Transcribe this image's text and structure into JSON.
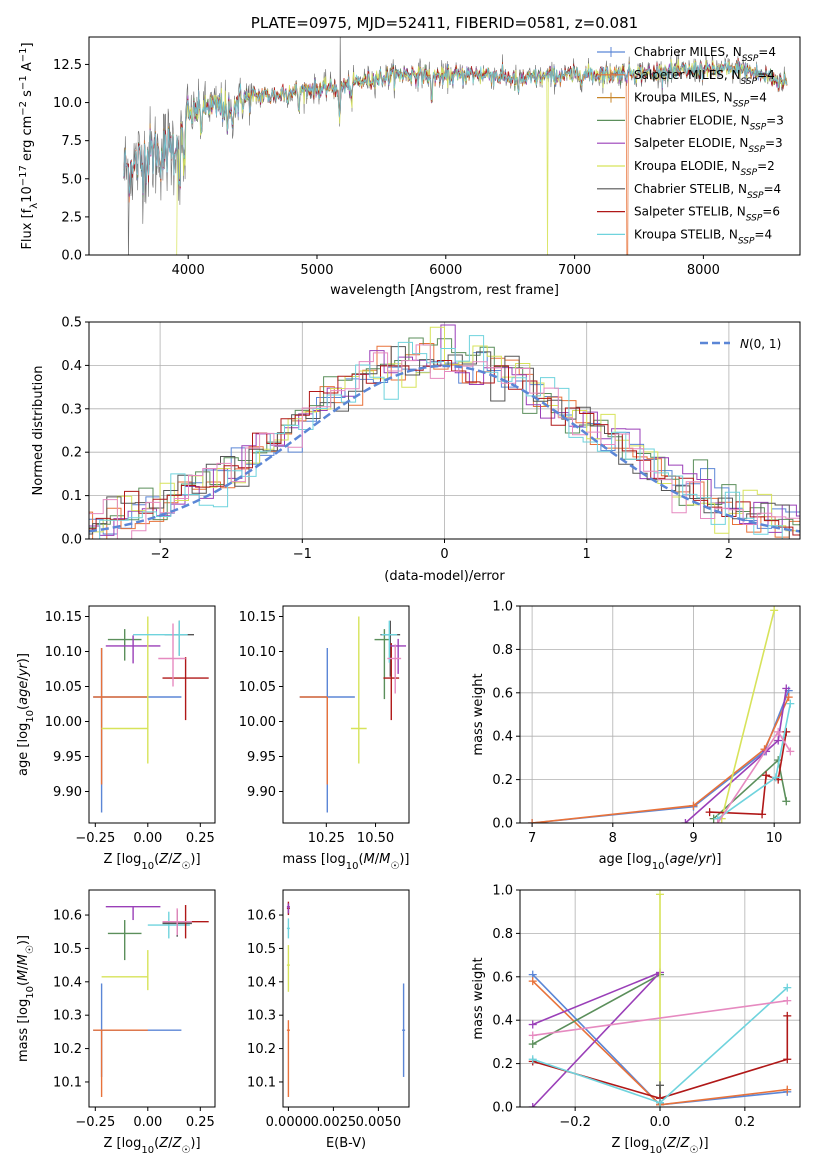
{
  "figure": {
    "title": "PLATE=0975, MJD=52411, FIBERID=0581, z=0.081"
  },
  "colors": {
    "Chabrier MILES": "#5b86d6",
    "Salpeter MILES": "#e8723a",
    "Kroupa MILES": "#c8862a",
    "Chabrier ELODIE": "#5b8f5b",
    "Salpeter ELODIE": "#9a3fb8",
    "Kroupa ELODIE": "#d7e35a",
    "Chabrier STELIB": "#555555",
    "Salpeter STELIB": "#b01818",
    "Kroupa STELIB": "#6fd3dd",
    "pink": "#e68ac0",
    "gauss": "#5b86d6"
  },
  "chart_data": [
    {
      "id": "spectrum",
      "type": "line",
      "title": "PLATE=0975, MJD=52411, FIBERID=0581, z=0.081",
      "xlabel": "wavelength [Angstrom, rest frame]",
      "ylabel": "Flux [f_λ10^-17 erg cm^-2 s^-1 A^-1]",
      "xlim": [
        3230,
        8750
      ],
      "ylim": [
        0,
        14.3
      ],
      "xticks": [
        4000,
        5000,
        6000,
        7000,
        8000
      ],
      "yticks": [
        0.0,
        2.5,
        5.0,
        7.5,
        10.0,
        12.5
      ],
      "legend_position": "right",
      "legend": [
        {
          "name": "Chabrier MILES",
          "n_ssp": 4
        },
        {
          "name": "Salpeter MILES",
          "n_ssp": 4
        },
        {
          "name": "Kroupa MILES",
          "n_ssp": 4
        },
        {
          "name": "Chabrier ELODIE",
          "n_ssp": 3
        },
        {
          "name": "Salpeter ELODIE",
          "n_ssp": 3
        },
        {
          "name": "Kroupa ELODIE",
          "n_ssp": 2
        },
        {
          "name": "Chabrier STELIB",
          "n_ssp": 4
        },
        {
          "name": "Salpeter STELIB",
          "n_ssp": 6
        },
        {
          "name": "Kroupa STELIB",
          "n_ssp": 4
        }
      ],
      "continuum_points": [
        [
          3500,
          5.5
        ],
        [
          3600,
          6.0
        ],
        [
          3700,
          6.5
        ],
        [
          3800,
          6.8
        ],
        [
          3900,
          7.2
        ],
        [
          3950,
          7.8
        ],
        [
          4000,
          9.0
        ],
        [
          4100,
          9.7
        ],
        [
          4300,
          9.8
        ],
        [
          4500,
          10.4
        ],
        [
          4700,
          10.5
        ],
        [
          4860,
          10.8
        ],
        [
          5000,
          10.9
        ],
        [
          5200,
          11.1
        ],
        [
          5400,
          11.5
        ],
        [
          5600,
          11.8
        ],
        [
          5800,
          11.9
        ],
        [
          6000,
          11.7
        ],
        [
          6300,
          11.9
        ],
        [
          6563,
          11.5
        ],
        [
          6800,
          11.7
        ],
        [
          7000,
          11.8
        ],
        [
          7300,
          11.9
        ],
        [
          7600,
          12.0
        ],
        [
          7900,
          12.1
        ],
        [
          8300,
          12.2
        ],
        [
          8600,
          11.4
        ]
      ],
      "absorption_lines": [
        [
          3934,
          3.0
        ],
        [
          3968,
          2.8
        ],
        [
          4101,
          1.5
        ],
        [
          4304,
          2.0
        ],
        [
          4340,
          1.5
        ],
        [
          4861,
          1.3
        ],
        [
          5175,
          2.5
        ],
        [
          5270,
          1.2
        ],
        [
          5890,
          2.0
        ],
        [
          6563,
          0.6
        ],
        [
          7600,
          0.5
        ]
      ],
      "dropouts": [
        {
          "series": "Kroupa ELODIE",
          "x": 3910
        },
        {
          "series": "Kroupa ELODIE",
          "x": 6790
        },
        {
          "series": "Salpeter MILES",
          "x": 7410
        }
      ]
    },
    {
      "id": "residuals",
      "type": "histogram",
      "xlabel": "(data-model)/error",
      "ylabel": "Normed distribution",
      "xlim": [
        -2.5,
        2.5
      ],
      "ylim": [
        0,
        0.5
      ],
      "xticks": [
        -2,
        -1,
        0,
        1,
        2
      ],
      "yticks": [
        0.0,
        0.1,
        0.2,
        0.3,
        0.4,
        0.5
      ],
      "grid": true,
      "bin_width": 0.1,
      "reference": {
        "label": "N(0,1)",
        "mean": 0,
        "sigma": 1,
        "style": "dashed"
      }
    },
    {
      "id": "age_vs_Z",
      "type": "errorbar",
      "xlabel": "Z [log10(Z/Z☉)]",
      "ylabel": "age [log10(age/yr)]",
      "xlim": [
        -0.28,
        0.32
      ],
      "ylim": [
        9.855,
        10.165
      ],
      "xticks": [
        -0.25,
        0.0,
        0.25
      ],
      "yticks": [
        9.9,
        9.95,
        10.0,
        10.05,
        10.1,
        10.15
      ],
      "points": [
        {
          "series": "Chabrier MILES",
          "x": -0.22,
          "xerr": [
            0.04,
            0.38
          ],
          "y": 10.035,
          "yerr": [
            0.165,
            0.07
          ]
        },
        {
          "series": "Salpeter MILES",
          "x": -0.22,
          "xerr": [
            0.04,
            0.22
          ],
          "y": 10.035,
          "yerr": [
            0.125,
            0.07
          ]
        },
        {
          "series": "Chabrier ELODIE",
          "x": -0.11,
          "xerr": [
            0.08,
            0.08
          ],
          "y": 10.117,
          "yerr": [
            0.03,
            0.015
          ]
        },
        {
          "series": "Salpeter ELODIE",
          "x": -0.07,
          "xerr": [
            0.13,
            0.13
          ],
          "y": 10.108,
          "yerr": [
            0.025,
            0.015
          ]
        },
        {
          "series": "Kroupa ELODIE",
          "x": 0.0,
          "xerr": [
            0.22,
            0.0
          ],
          "y": 9.99,
          "yerr": [
            0.05,
            0.16
          ]
        },
        {
          "series": "Chabrier STELIB",
          "x": 0.15,
          "xerr": [
            0.07,
            0.07
          ],
          "y": 10.124,
          "yerr": [
            0.03,
            0.02
          ]
        },
        {
          "series": "Salpeter STELIB",
          "x": 0.18,
          "xerr": [
            0.11,
            0.11
          ],
          "y": 10.062,
          "yerr": [
            0.06,
            0.03
          ]
        },
        {
          "series": "Kroupa STELIB",
          "x": 0.15,
          "xerr": [
            0.22,
            0.04
          ],
          "y": 10.124,
          "yerr": [
            0.03,
            0.02
          ]
        },
        {
          "series": "pink",
          "x": 0.12,
          "xerr": [
            0.07,
            0.06
          ],
          "y": 10.09,
          "yerr": [
            0.04,
            0.05
          ]
        }
      ]
    },
    {
      "id": "age_vs_mass",
      "type": "errorbar",
      "xlabel": "mass [log10(M/M☉)]",
      "ylabel": "",
      "xlim": [
        10.03,
        10.67
      ],
      "ylim": [
        9.855,
        10.165
      ],
      "xticks": [
        10.25,
        10.5
      ],
      "yticks": [
        9.9,
        9.95,
        10.0,
        10.05,
        10.1,
        10.15
      ],
      "points": [
        {
          "series": "Chabrier MILES",
          "x": 10.255,
          "xerr": [
            0.14,
            0.14
          ],
          "y": 10.035,
          "yerr": [
            0.165,
            0.07
          ]
        },
        {
          "series": "Salpeter MILES",
          "x": 10.255,
          "xerr": [
            0.14,
            0.0
          ],
          "y": 10.035,
          "yerr": [
            0.125,
            0.0
          ]
        },
        {
          "series": "Kroupa ELODIE",
          "x": 10.415,
          "xerr": [
            0.04,
            0.04
          ],
          "y": 9.99,
          "yerr": [
            0.05,
            0.16
          ]
        },
        {
          "series": "Chabrier ELODIE",
          "x": 10.545,
          "xerr": [
            0.05,
            0.03
          ],
          "y": 10.117,
          "yerr": [
            0.085,
            0.015
          ]
        },
        {
          "series": "Chabrier STELIB",
          "x": 10.575,
          "xerr": [
            0.05,
            0.05
          ],
          "y": 10.124,
          "yerr": [
            0.06,
            0.02
          ]
        },
        {
          "series": "Salpeter STELIB",
          "x": 10.58,
          "xerr": [
            0.04,
            0.04
          ],
          "y": 10.062,
          "yerr": [
            0.06,
            0.05
          ]
        },
        {
          "series": "Salpeter ELODIE",
          "x": 10.615,
          "xerr": [
            0.04,
            0.04
          ],
          "y": 10.108,
          "yerr": [
            0.04,
            0.01
          ]
        },
        {
          "series": "Kroupa STELIB",
          "x": 10.57,
          "xerr": [
            0.04,
            0.04
          ],
          "y": 10.124,
          "yerr": [
            0.04,
            0.02
          ]
        },
        {
          "series": "pink",
          "x": 10.6,
          "xerr": [
            0.04,
            0.03
          ],
          "y": 10.09,
          "yerr": [
            0.05,
            0.02
          ]
        }
      ]
    },
    {
      "id": "weight_vs_age",
      "type": "line",
      "xlabel": "age [log10(age/yr)]",
      "ylabel": "mass weight",
      "xlim": [
        6.85,
        10.32
      ],
      "ylim": [
        0,
        1.0
      ],
      "xticks": [
        7,
        8,
        9,
        10
      ],
      "yticks": [
        0.0,
        0.2,
        0.4,
        0.6,
        0.8,
        1.0
      ],
      "grid": true,
      "series": [
        {
          "name": "Chabrier MILES",
          "x": [
            7.0,
            9.0,
            9.88,
            10.18
          ],
          "y": [
            0.0,
            0.075,
            0.33,
            0.61
          ]
        },
        {
          "name": "Salpeter MILES",
          "x": [
            7.0,
            9.0,
            9.88,
            10.18
          ],
          "y": [
            0.0,
            0.08,
            0.34,
            0.58
          ]
        },
        {
          "name": "Chabrier ELODIE",
          "x": [
            9.25,
            10.05,
            10.15
          ],
          "y": [
            0.02,
            0.29,
            0.1
          ]
        },
        {
          "name": "Salpeter ELODIE",
          "x": [
            8.9,
            9.9,
            10.05,
            10.15
          ],
          "y": [
            0.0,
            0.33,
            0.38,
            0.62
          ]
        },
        {
          "name": "Kroupa ELODIE",
          "x": [
            9.35,
            10.0
          ],
          "y": [
            0.02,
            0.98
          ]
        },
        {
          "name": "Salpeter STELIB",
          "x": [
            9.2,
            9.85,
            9.9,
            10.05,
            10.15
          ],
          "y": [
            0.05,
            0.04,
            0.22,
            0.2,
            0.42
          ]
        },
        {
          "name": "Kroupa STELIB",
          "x": [
            9.3,
            10.02,
            10.2
          ],
          "y": [
            0.02,
            0.21,
            0.55
          ]
        },
        {
          "name": "pink",
          "x": [
            9.3,
            10.05,
            10.2
          ],
          "y": [
            0.0,
            0.42,
            0.33
          ]
        }
      ]
    },
    {
      "id": "mass_vs_Z",
      "type": "errorbar",
      "xlabel": "Z [log10(Z/Z☉)]",
      "ylabel": "mass [log10(M/M☉)]",
      "xlim": [
        -0.28,
        0.32
      ],
      "ylim": [
        10.025,
        10.675
      ],
      "xticks": [
        -0.25,
        0.0,
        0.25
      ],
      "yticks": [
        10.1,
        10.2,
        10.3,
        10.4,
        10.5,
        10.6
      ],
      "points": [
        {
          "series": "Chabrier MILES",
          "x": -0.22,
          "xerr": [
            0.04,
            0.38
          ],
          "y": 10.255,
          "yerr": [
            0.14,
            0.14
          ]
        },
        {
          "series": "Salpeter MILES",
          "x": -0.22,
          "xerr": [
            0.04,
            0.22
          ],
          "y": 10.255,
          "yerr": [
            0.2,
            0.0
          ]
        },
        {
          "series": "Kroupa ELODIE",
          "x": 0.0,
          "xerr": [
            0.22,
            0.0
          ],
          "y": 10.415,
          "yerr": [
            0.04,
            0.08
          ]
        },
        {
          "series": "Chabrier ELODIE",
          "x": -0.11,
          "xerr": [
            0.08,
            0.08
          ],
          "y": 10.545,
          "yerr": [
            0.08,
            0.04
          ]
        },
        {
          "series": "Salpeter ELODIE",
          "x": -0.07,
          "xerr": [
            0.13,
            0.13
          ],
          "y": 10.625,
          "yerr": [
            0.04,
            0.0
          ]
        },
        {
          "series": "Kroupa STELIB",
          "x": 0.1,
          "xerr": [
            0.1,
            0.1
          ],
          "y": 10.57,
          "yerr": [
            0.04,
            0.04
          ]
        },
        {
          "series": "Chabrier STELIB",
          "x": 0.14,
          "xerr": [
            0.07,
            0.07
          ],
          "y": 10.575,
          "yerr": [
            0.04,
            0.04
          ]
        },
        {
          "series": "Salpeter STELIB",
          "x": 0.18,
          "xerr": [
            0.11,
            0.11
          ],
          "y": 10.58,
          "yerr": [
            0.05,
            0.05
          ]
        },
        {
          "series": "pink",
          "x": 0.14,
          "xerr": [
            0.07,
            0.07
          ],
          "y": 10.58,
          "yerr": [
            0.04,
            0.04
          ]
        }
      ]
    },
    {
      "id": "mass_vs_ebv",
      "type": "errorbar",
      "xlabel": "E(B-V)",
      "ylabel": "",
      "xlim": [
        -0.0003,
        0.0067
      ],
      "ylim": [
        10.025,
        10.675
      ],
      "xticks": [
        0.0,
        0.0025,
        0.005
      ],
      "xticklabels": [
        "0.0000",
        "0.0025",
        "0.0050"
      ],
      "yticks": [
        10.1,
        10.2,
        10.3,
        10.4,
        10.5,
        10.6
      ],
      "points": [
        {
          "series": "Chabrier MILES",
          "x": 0.0064,
          "xerr": [
            0,
            0
          ],
          "y": 10.255,
          "yerr": [
            0.14,
            0.14
          ]
        },
        {
          "series": "Salpeter MILES",
          "x": 0.0,
          "xerr": [
            0,
            0
          ],
          "y": 10.255,
          "yerr": [
            0.2,
            0.03
          ]
        },
        {
          "series": "Kroupa ELODIE",
          "x": 0.0,
          "xerr": [
            0,
            0
          ],
          "y": 10.45,
          "yerr": [
            0.08,
            0.06
          ]
        },
        {
          "series": "Salpeter STELIB",
          "x": 0.0,
          "xerr": [
            0,
            0
          ],
          "y": 10.62,
          "yerr": [
            0.02,
            0.02
          ]
        },
        {
          "series": "Kroupa STELIB",
          "x": 0.0,
          "xerr": [
            0,
            0
          ],
          "y": 10.56,
          "yerr": [
            0.03,
            0.03
          ]
        },
        {
          "series": "Salpeter ELODIE",
          "x": 0.0,
          "xerr": [
            0,
            0
          ],
          "y": 10.625,
          "yerr": [
            0.02,
            0.01
          ]
        }
      ]
    },
    {
      "id": "weight_vs_Z",
      "type": "line",
      "xlabel": "Z [log10(Z/Z☉)]",
      "ylabel": "mass weight",
      "xlim": [
        -0.33,
        0.33
      ],
      "ylim": [
        0,
        1.0
      ],
      "xticks": [
        -0.2,
        0.0,
        0.2
      ],
      "yticks": [
        0.0,
        0.2,
        0.4,
        0.6,
        0.8,
        1.0
      ],
      "grid": true,
      "series": [
        {
          "name": "Chabrier MILES",
          "x": [
            -0.3,
            0.0,
            0.3
          ],
          "y": [
            0.61,
            0.01,
            0.07
          ]
        },
        {
          "name": "Salpeter MILES",
          "x": [
            -0.3,
            0.0,
            0.3
          ],
          "y": [
            0.58,
            0.01,
            0.08
          ]
        },
        {
          "name": "Chabrier ELODIE",
          "x": [
            -0.3,
            0.0
          ],
          "y": [
            0.29,
            0.61
          ]
        },
        {
          "name": "Salpeter ELODIE",
          "x": [
            -0.3,
            0.0,
            -0.3
          ],
          "y": [
            0.0,
            0.62,
            0.38
          ]
        },
        {
          "name": "Kroupa ELODIE",
          "x": [
            0.0,
            0.0
          ],
          "y": [
            0.02,
            0.98
          ]
        },
        {
          "name": "Chabrier STELIB",
          "x": [
            0.0,
            0.0
          ],
          "y": [
            0.02,
            0.1
          ]
        },
        {
          "name": "Salpeter STELIB",
          "x": [
            -0.3,
            0.0,
            0.3,
            0.3
          ],
          "y": [
            0.21,
            0.04,
            0.22,
            0.42
          ]
        },
        {
          "name": "Kroupa STELIB",
          "x": [
            -0.3,
            0.0,
            0.3
          ],
          "y": [
            0.22,
            0.02,
            0.55
          ]
        },
        {
          "name": "pink",
          "x": [
            -0.3,
            0.3
          ],
          "y": [
            0.33,
            0.49
          ]
        }
      ]
    }
  ]
}
